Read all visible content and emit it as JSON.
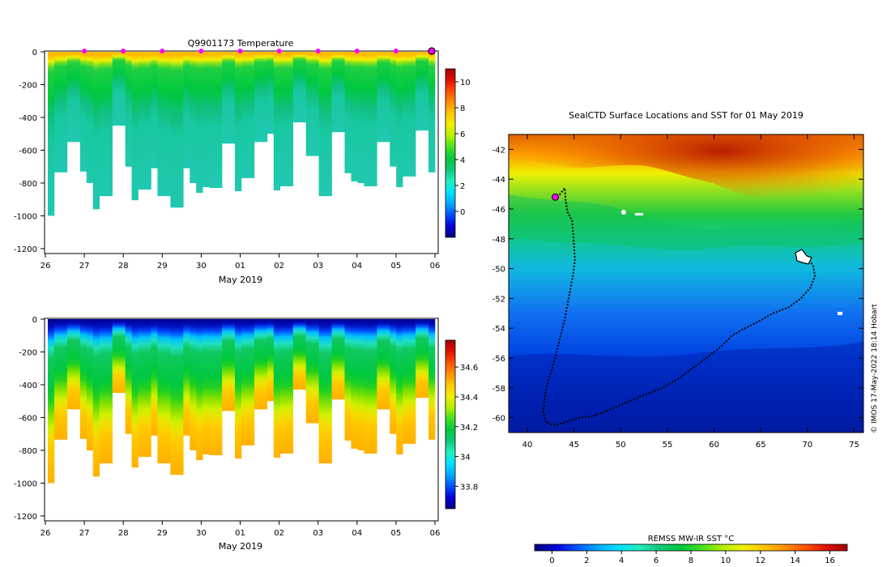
{
  "colors": {
    "jet": [
      "#00007f",
      "#0000d8",
      "#0050ff",
      "#00a8ff",
      "#00e0ff",
      "#20f0c0",
      "#10c878",
      "#00c840",
      "#40e020",
      "#b0f000",
      "#f0f000",
      "#ffc800",
      "#ff9000",
      "#ff5000",
      "#e01000",
      "#a00000"
    ],
    "marker": "#ff00ff",
    "track": "#000000"
  },
  "chart_data": [
    {
      "type": "heatmap",
      "name": "temperature-section",
      "title": "Q9901173  Temperature",
      "xlabel": "May 2019",
      "ylabel": "",
      "x_ticks": [
        "26",
        "27",
        "28",
        "29",
        "30",
        "01",
        "02",
        "03",
        "04",
        "05",
        "06"
      ],
      "y_ticks": [
        "0",
        "-200",
        "-400",
        "-600",
        "-800",
        "-1000",
        "-1200"
      ],
      "ylim": [
        -1230,
        0
      ],
      "colorbar_ticks": [
        "10",
        "8",
        "6",
        "4",
        "2",
        "0"
      ],
      "colorbar_range": [
        -2,
        11
      ],
      "profile_bottom_depths": [
        1000,
        735,
        735,
        550,
        550,
        730,
        800,
        960,
        880,
        880,
        450,
        450,
        700,
        905,
        840,
        840,
        710,
        880,
        880,
        950,
        950,
        710,
        800,
        860,
        825,
        830,
        830,
        560,
        560,
        850,
        770,
        770,
        550,
        550,
        500,
        845,
        820,
        820,
        430,
        430,
        635,
        635,
        880,
        880,
        490,
        490,
        740,
        790,
        800,
        820,
        820,
        550,
        550,
        700,
        825,
        760,
        760,
        480,
        480,
        735
      ],
      "markers_x": [
        "27",
        "28",
        "29",
        "30",
        "01",
        "02",
        "03",
        "04",
        "05",
        "06"
      ]
    },
    {
      "type": "heatmap",
      "name": "salinity-section",
      "title": "",
      "xlabel": "May 2019",
      "ylabel": "",
      "x_ticks": [
        "26",
        "27",
        "28",
        "29",
        "30",
        "01",
        "02",
        "03",
        "04",
        "05",
        "06"
      ],
      "y_ticks": [
        "0",
        "-200",
        "-400",
        "-600",
        "-800",
        "-1000",
        "-1200"
      ],
      "ylim": [
        -1230,
        0
      ],
      "colorbar_ticks": [
        "34.6",
        "34.4",
        "34.2",
        "34",
        "33.8"
      ],
      "colorbar_range": [
        33.65,
        34.78
      ],
      "profile_bottom_depths": [
        1000,
        735,
        735,
        550,
        550,
        730,
        800,
        960,
        880,
        880,
        450,
        450,
        700,
        905,
        840,
        840,
        710,
        880,
        880,
        950,
        950,
        710,
        800,
        860,
        825,
        830,
        830,
        560,
        560,
        850,
        770,
        770,
        550,
        550,
        500,
        845,
        820,
        820,
        430,
        430,
        635,
        635,
        880,
        880,
        490,
        490,
        740,
        790,
        800,
        820,
        820,
        550,
        550,
        700,
        825,
        760,
        760,
        480,
        480,
        735
      ]
    },
    {
      "type": "map",
      "name": "sst-map",
      "title": "SealCTD Surface Locations and SST for 01 May 2019",
      "x_ticks": [
        "40",
        "45",
        "50",
        "55",
        "60",
        "65",
        "70",
        "75"
      ],
      "y_ticks": [
        "-42",
        "-44",
        "-46",
        "-48",
        "-50",
        "-52",
        "-54",
        "-56",
        "-58",
        "-60"
      ],
      "xlim": [
        38,
        76
      ],
      "ylim": [
        -61,
        -41
      ],
      "colorbar_label": "REMSS MW-IR SST °C",
      "colorbar_ticks": [
        "0",
        "2",
        "4",
        "6",
        "8",
        "10",
        "12",
        "14",
        "16"
      ],
      "colorbar_range": [
        -1,
        17
      ],
      "track_lon": [
        43.2,
        43.5,
        44.0,
        44.1,
        44.3,
        44.8,
        44.9,
        45.0,
        45.1,
        44.9,
        44.6,
        44.3,
        44.0,
        43.6,
        43.2,
        42.8,
        42.3,
        41.9,
        41.7,
        42.0,
        42.8,
        43.6,
        44.5,
        45.6,
        47.0,
        48.7,
        50.5,
        52.5,
        54.5,
        56.4,
        58.1,
        59.6,
        60.8,
        61.9,
        63.0,
        64.6,
        66.3,
        68.0,
        69.3,
        70.3,
        70.8,
        70.6,
        70.0,
        69.4,
        69.0,
        69.4,
        70.2,
        70.0,
        69.4,
        68.9
      ],
      "track_lat": [
        -45.2,
        -45.0,
        -44.6,
        -45.4,
        -46.2,
        -46.8,
        -47.6,
        -48.5,
        -49.4,
        -50.4,
        -51.4,
        -52.4,
        -53.4,
        -54.4,
        -55.4,
        -56.4,
        -57.4,
        -58.4,
        -59.6,
        -60.3,
        -60.5,
        -60.4,
        -60.2,
        -60.0,
        -59.9,
        -59.5,
        -59.0,
        -58.5,
        -58.0,
        -57.3,
        -56.5,
        -55.8,
        -55.2,
        -54.5,
        -54.1,
        -53.6,
        -53.0,
        -52.6,
        -52.0,
        -51.3,
        -50.5,
        -49.8,
        -49.3,
        -49.5,
        -49.1,
        -49.0,
        -49.3,
        -49.6,
        -49.4,
        -49.2
      ],
      "marker_lon": 43.0,
      "marker_lat": -45.2
    }
  ],
  "footer": {
    "credit": "© IMOS 17-May-2022 18:14 Hobart"
  }
}
